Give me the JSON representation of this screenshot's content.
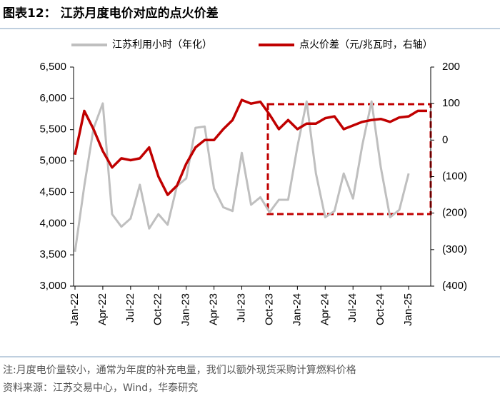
{
  "chart_data": {
    "type": "line",
    "title": "图表12：  江苏月度电价对应的点火价差",
    "categories": [
      "Jan-22",
      null,
      null,
      "Apr-22",
      null,
      null,
      "Jul-22",
      null,
      null,
      "Oct-22",
      null,
      null,
      "Jan-23",
      null,
      null,
      "Apr-23",
      null,
      null,
      "Jul-23",
      null,
      null,
      "Oct-23",
      null,
      null,
      "Jan-24",
      null,
      null,
      "Apr-24",
      null,
      null,
      "Jul-24",
      null,
      null,
      "Oct-24",
      null,
      null,
      "Jan-25",
      null,
      null
    ],
    "series": [
      {
        "name": "江苏利用小时（年化）",
        "color": "#bfbfbf",
        "axis": "y",
        "values": [
          3550,
          4600,
          5520,
          5920,
          4150,
          3950,
          4080,
          4620,
          3920,
          4150,
          3980,
          4600,
          4720,
          5530,
          5550,
          4560,
          4260,
          4200,
          5130,
          4300,
          4420,
          4180,
          4380,
          4380,
          5230,
          5950,
          4800,
          4100,
          4200,
          4800,
          4400,
          5250,
          5950,
          4900,
          4100,
          4220,
          4800,
          null,
          null
        ]
      },
      {
        "name": "点火价差（元/兆瓦时，右轴）",
        "color": "#c00000",
        "axis": "y2",
        "values": [
          -40,
          80,
          30,
          -30,
          -75,
          -50,
          -55,
          -50,
          -20,
          -100,
          -150,
          -125,
          -65,
          -20,
          0,
          0,
          30,
          55,
          110,
          100,
          105,
          70,
          30,
          55,
          30,
          45,
          45,
          60,
          65,
          30,
          40,
          50,
          55,
          58,
          50,
          62,
          65,
          80,
          80
        ]
      }
    ],
    "ylim": [
      3000,
      6500
    ],
    "yticks": [
      {
        "value": 3000,
        "label": "3,000"
      },
      {
        "value": 3500,
        "label": "3,500"
      },
      {
        "value": 4000,
        "label": "4,000"
      },
      {
        "value": 4500,
        "label": "4,500"
      },
      {
        "value": 5000,
        "label": "5,000"
      },
      {
        "value": 5500,
        "label": "5,500"
      },
      {
        "value": 6000,
        "label": "6,000"
      },
      {
        "value": 6500,
        "label": "6,500"
      }
    ],
    "y2lim": [
      -400,
      200
    ],
    "y2ticks": [
      {
        "value": -400,
        "label": "(400)"
      },
      {
        "value": -300,
        "label": "(300)"
      },
      {
        "value": -200,
        "label": "(200)"
      },
      {
        "value": -100,
        "label": "(100)"
      },
      0,
      100,
      200
    ],
    "legend": "top",
    "notes": [
      "注:月度电价量较小，通常为年度的补充电量，我们以额外现货采购计算燃料价格",
      "资料来源：江苏交易中心，Wind，华泰研究"
    ]
  }
}
